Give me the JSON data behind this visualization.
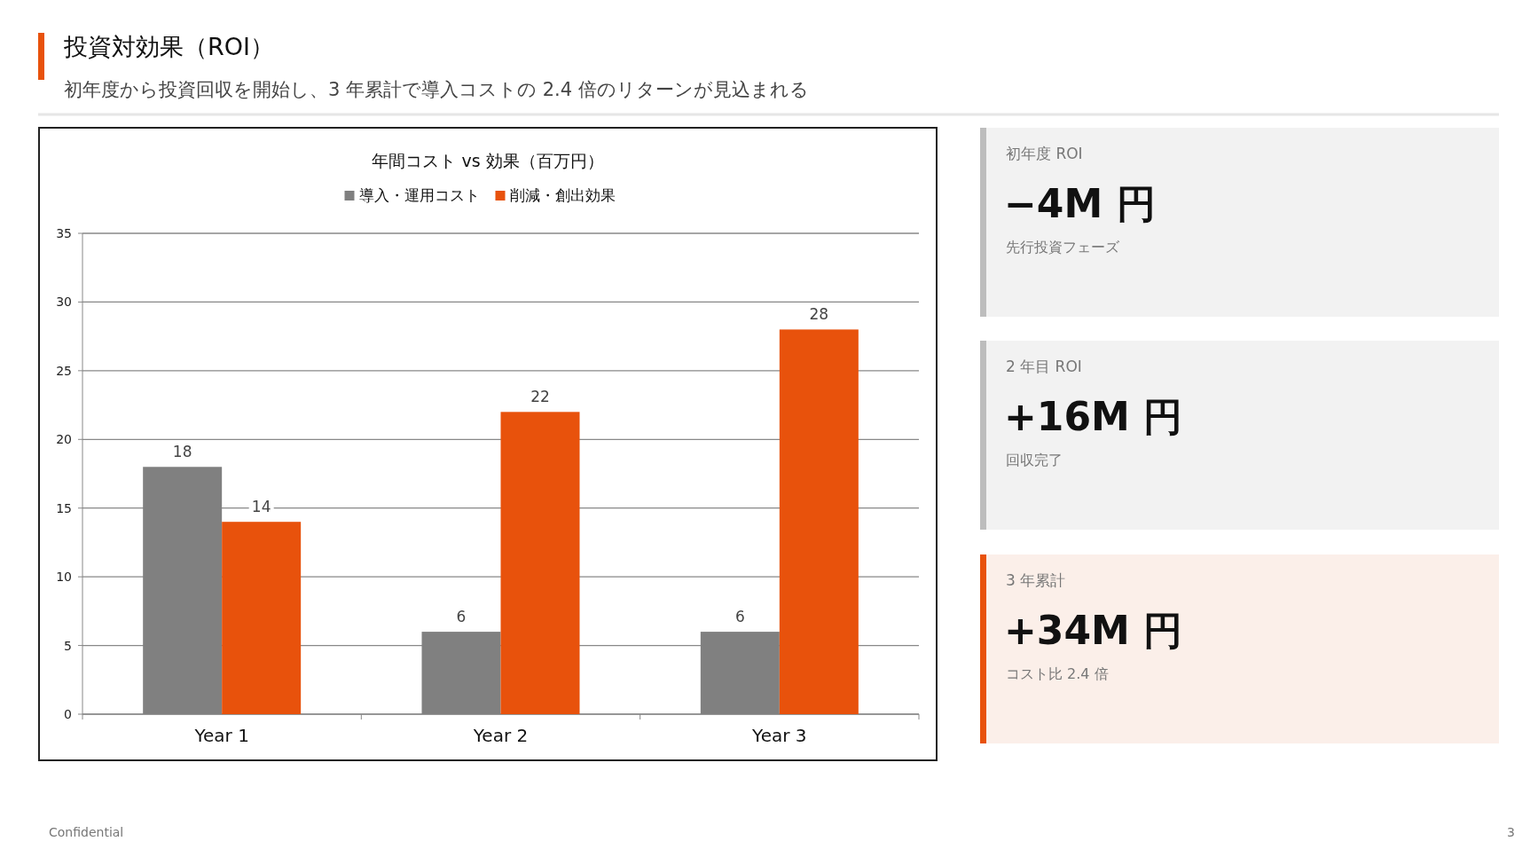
{
  "chart_data": [
    {
      "type": "bar",
      "title": "年間コスト vs 効果（百万円）",
      "categories": [
        "Year 1",
        "Year 2",
        "Year 3"
      ],
      "series": [
        {
          "name": "導入・運用コスト",
          "color": "#808080",
          "values": [
            18,
            6,
            6
          ]
        },
        {
          "name": "削減・創出効果",
          "color": "#e8520c",
          "values": [
            14,
            22,
            28
          ]
        }
      ],
      "ylim": [
        0,
        35
      ],
      "yticks": [
        0,
        5,
        10,
        15,
        20,
        25,
        30,
        35
      ],
      "grid": "y",
      "legend": "top",
      "data_labels": true,
      "annotations": [
        "投資対効果（ROI）",
        "初年度から投資回収を開始し、3 年累計で導入コストの 2.4 倍のリターンが見込まれる",
        "Confidential",
        "3"
      ]
    },
    {
      "type": "other",
      "title": "初年度 ROI",
      "annotations": [
        "−4M 円",
        "先行投資フェーズ"
      ]
    },
    {
      "type": "other",
      "title": "2 年目 ROI",
      "annotations": [
        "+16M 円",
        "回収完了"
      ]
    },
    {
      "type": "other",
      "title": "3 年累計",
      "annotations": [
        "+34M 円",
        "コスト比 2.4 倍"
      ]
    }
  ]
}
